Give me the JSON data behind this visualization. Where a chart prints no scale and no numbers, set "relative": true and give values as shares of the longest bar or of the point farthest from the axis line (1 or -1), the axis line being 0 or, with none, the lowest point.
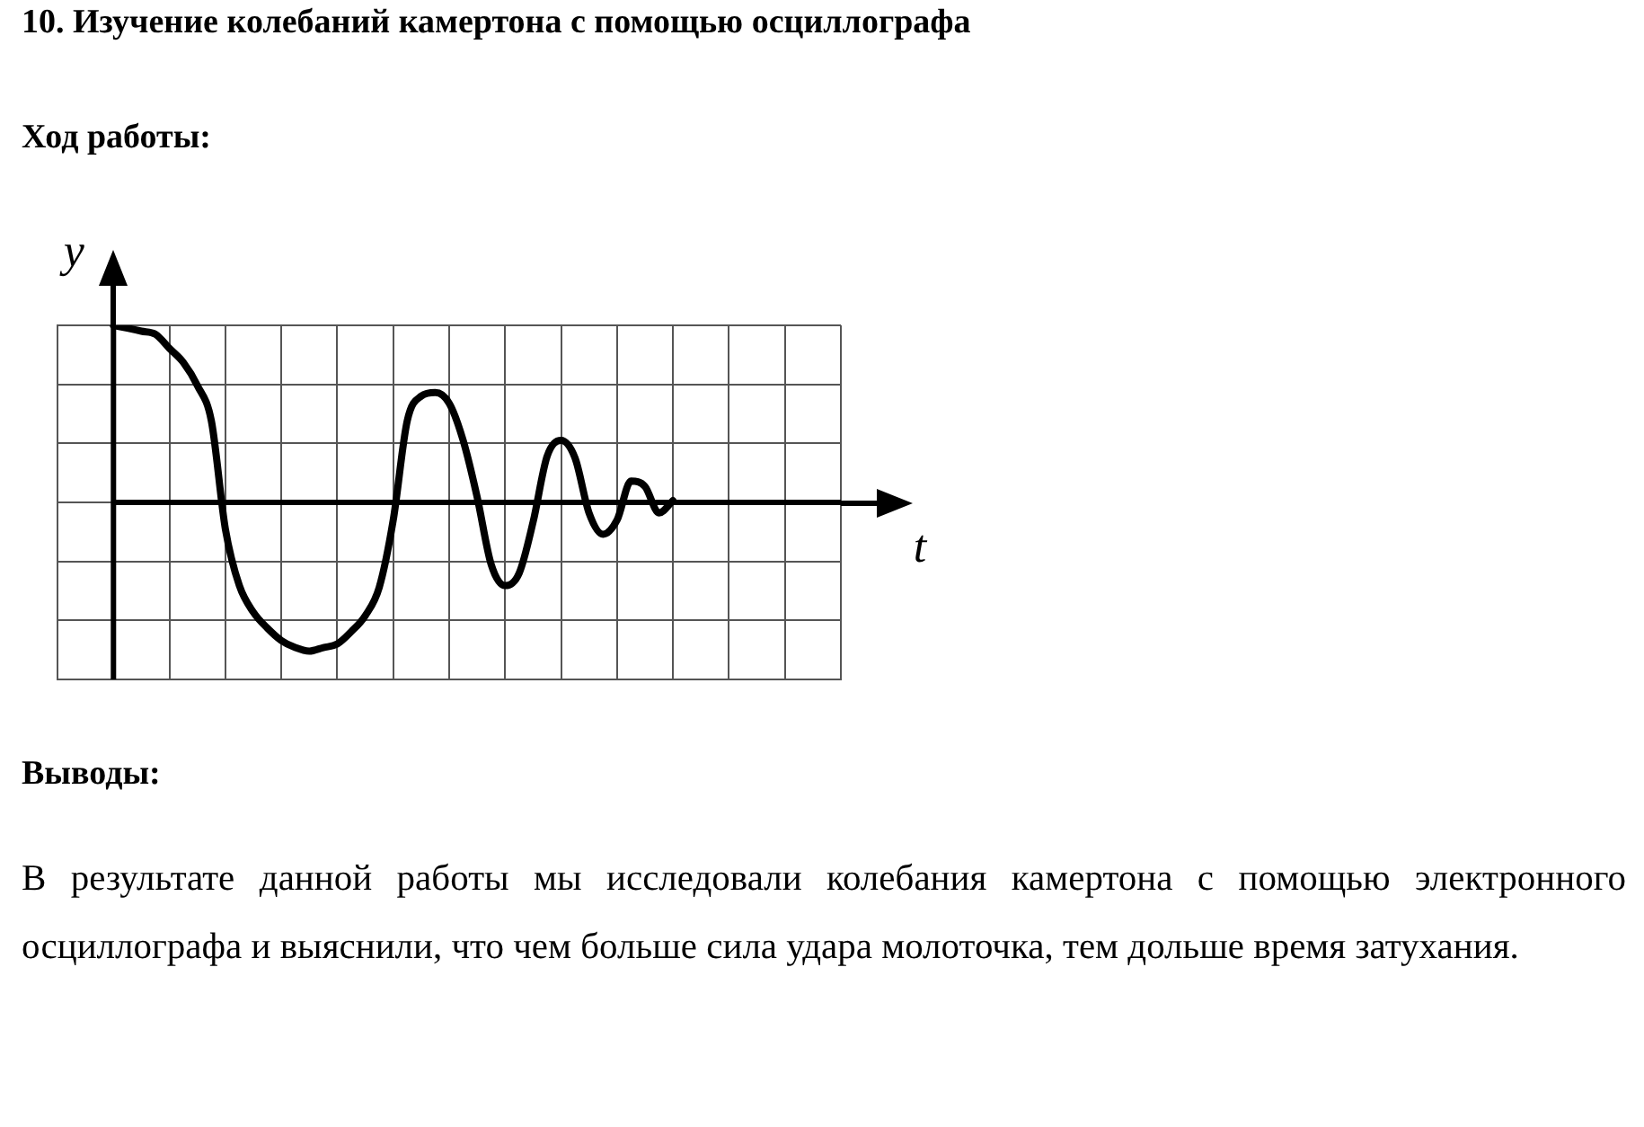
{
  "chart_data": {
    "type": "line",
    "title": "10. Изучение колебаний камертона с помощью осциллографа",
    "subtitle": "Ход работы:",
    "xlabel": "t",
    "ylabel": "y",
    "relative": true,
    "categories": [
      null,
      null,
      null,
      null,
      null,
      null,
      null,
      null,
      null,
      null,
      null,
      null,
      null,
      null,
      null,
      null,
      null,
      null,
      null,
      null,
      null,
      null,
      null,
      null,
      null,
      null,
      null,
      null,
      null,
      null,
      null,
      null,
      null,
      null,
      null,
      null,
      null,
      null,
      null,
      null,
      null,
      null,
      null,
      null,
      null,
      null,
      null,
      null,
      null,
      null,
      null,
      null,
      null,
      null,
      null,
      null,
      null
    ],
    "values": [
      null,
      null,
      null,
      null,
      1,
      0.984,
      0.967,
      0.95,
      0.87,
      0.79,
      0.66,
      0.46,
      -0.15,
      -0.47,
      -0.62,
      -0.71,
      -0.78,
      -0.82,
      -0.84,
      -0.82,
      -0.8,
      -0.73,
      -0.64,
      -0.48,
      -0.1,
      0.46,
      0.6,
      0.62,
      0.56,
      0.35,
      0.03,
      -0.35,
      -0.47,
      -0.4,
      -0.11,
      0.26,
      0.35,
      0.25,
      -0.06,
      -0.18,
      -0.1,
      0.12,
      0.09,
      -0.06,
      0.01,
      null,
      null,
      null,
      null,
      null,
      null,
      null,
      null,
      null,
      null,
      null,
      null
    ],
    "color": "#000000",
    "grid": true,
    "tick_labels": false,
    "marker": "none",
    "line_style": "solid",
    "annotations": [
      "Выводы:",
      "В результате данной работы мы исследовали колебания камертона с помощью электронного осциллографа и выяснили, что чем больше сила удара молоточка, тем дольше время затухания."
    ]
  }
}
